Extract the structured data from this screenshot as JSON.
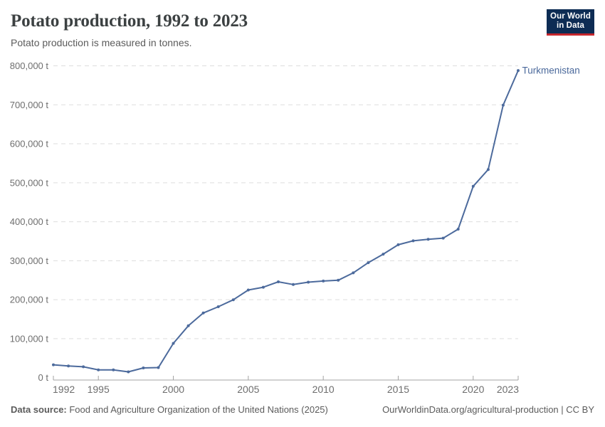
{
  "header": {
    "title": "Potato production, 1992 to 2023",
    "subtitle": "Potato production is measured in tonnes.",
    "logo": {
      "line1": "Our World",
      "line2": "in Data"
    }
  },
  "chart_data": {
    "type": "line",
    "title": "Potato production, 1992 to 2023",
    "subtitle": "Potato production is measured in tonnes.",
    "unit": "tonnes",
    "unit_suffix": " t",
    "xlim": [
      1992,
      2023
    ],
    "ylim": [
      0,
      800000
    ],
    "x_ticks": [
      1992,
      1995,
      2000,
      2005,
      2010,
      2015,
      2020,
      2023
    ],
    "y_ticks": [
      0,
      100000,
      200000,
      300000,
      400000,
      500000,
      600000,
      700000,
      800000
    ],
    "grid": "horizontal-dashed",
    "legend_position": "end-of-line-label",
    "x": [
      1992,
      1993,
      1994,
      1995,
      1996,
      1997,
      1998,
      1999,
      2000,
      2001,
      2002,
      2003,
      2004,
      2005,
      2006,
      2007,
      2008,
      2009,
      2010,
      2011,
      2012,
      2013,
      2014,
      2015,
      2016,
      2017,
      2018,
      2019,
      2020,
      2021,
      2022,
      2023
    ],
    "series": [
      {
        "name": "Turkmenistan",
        "color": "#4C6A9C",
        "values": [
          33000,
          30000,
          28000,
          20000,
          20000,
          15000,
          25000,
          26000,
          88000,
          133000,
          166000,
          182000,
          200000,
          225000,
          232000,
          246000,
          239000,
          245000,
          248000,
          250000,
          269000,
          295000,
          317000,
          341000,
          351000,
          355000,
          358000,
          381000,
          491000,
          534000,
          699000,
          788000
        ]
      }
    ]
  },
  "footer": {
    "datasource_label": "Data source:",
    "datasource_text": " Food and Agriculture Organization of the United Nations (2025)",
    "attribution": "OurWorldinData.org/agricultural-production | CC BY"
  },
  "colors": {
    "line": "#4C6A9C",
    "grid": "#DDDDDD",
    "axis": "#A3A3A3",
    "tick": "#6E6E6E",
    "title": "#3C4142",
    "subtitle": "#5B5B5B",
    "footer": "#5B5B5B",
    "logo-bg": "#0D2C54",
    "logo-accent": "#C5262C",
    "bg": "#FFFFFF"
  }
}
